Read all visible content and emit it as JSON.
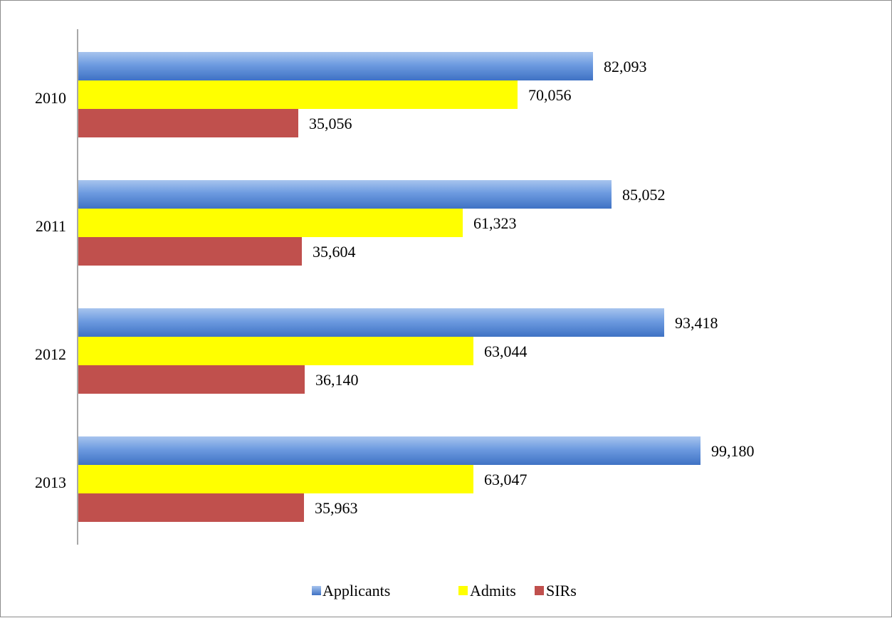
{
  "chart_data": {
    "type": "bar",
    "orientation": "horizontal",
    "categories": [
      "2010",
      "2011",
      "2012",
      "2013"
    ],
    "series": [
      {
        "name": "Applicants",
        "color": "#4f81bd",
        "values": [
          82093,
          85052,
          93418,
          99180
        ],
        "labels": [
          "82,093",
          "85,052",
          "93,418",
          "99,180"
        ]
      },
      {
        "name": "Admits",
        "color": "#ffff00",
        "values": [
          70056,
          61323,
          63044,
          63047
        ],
        "labels": [
          "70,056",
          "61,323",
          "63,044",
          "63,047"
        ]
      },
      {
        "name": "SIRs",
        "color": "#c0504d",
        "values": [
          35056,
          35604,
          36140,
          35963
        ],
        "labels": [
          "35,056",
          "35,604",
          "36,140",
          "35,963"
        ]
      }
    ],
    "xlim": [
      0,
      100000
    ],
    "grid": false,
    "legend": "bottom",
    "data_labels": true
  }
}
